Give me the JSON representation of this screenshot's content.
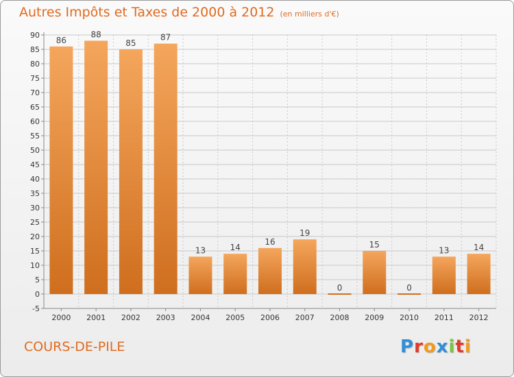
{
  "title": "Autres Impôts et Taxes de 2000 à 2012",
  "subtitle": "(en milliers d'€)",
  "commune": "COURS-DE-PILE",
  "logo": "Proxiti",
  "logo_colors": [
    "#2f8fd8",
    "#e03a2a",
    "#f29a1a",
    "#2f8fd8",
    "#7cc142",
    "#e03a2a",
    "#f29a1a"
  ],
  "colors": {
    "bar_top": "#f4a65c",
    "bar_bottom": "#cf6e1e",
    "title": "#e06a1f",
    "grid": "#c8c8c8"
  },
  "chart_data": {
    "type": "bar",
    "title": "Autres Impôts et Taxes de 2000 à 2012",
    "subtitle": "(en milliers d'€)",
    "categories": [
      "2000",
      "2001",
      "2002",
      "2003",
      "2004",
      "2005",
      "2006",
      "2007",
      "2008",
      "2009",
      "2010",
      "2011",
      "2012"
    ],
    "values": [
      86,
      88,
      85,
      87,
      13,
      14,
      16,
      19,
      0,
      15,
      0,
      13,
      14
    ],
    "ylim": [
      -5,
      90
    ],
    "yticks": [
      -5,
      0,
      5,
      10,
      15,
      20,
      25,
      30,
      35,
      40,
      45,
      50,
      55,
      60,
      65,
      70,
      75,
      80,
      85,
      90
    ],
    "grid": true,
    "legend": "none"
  }
}
